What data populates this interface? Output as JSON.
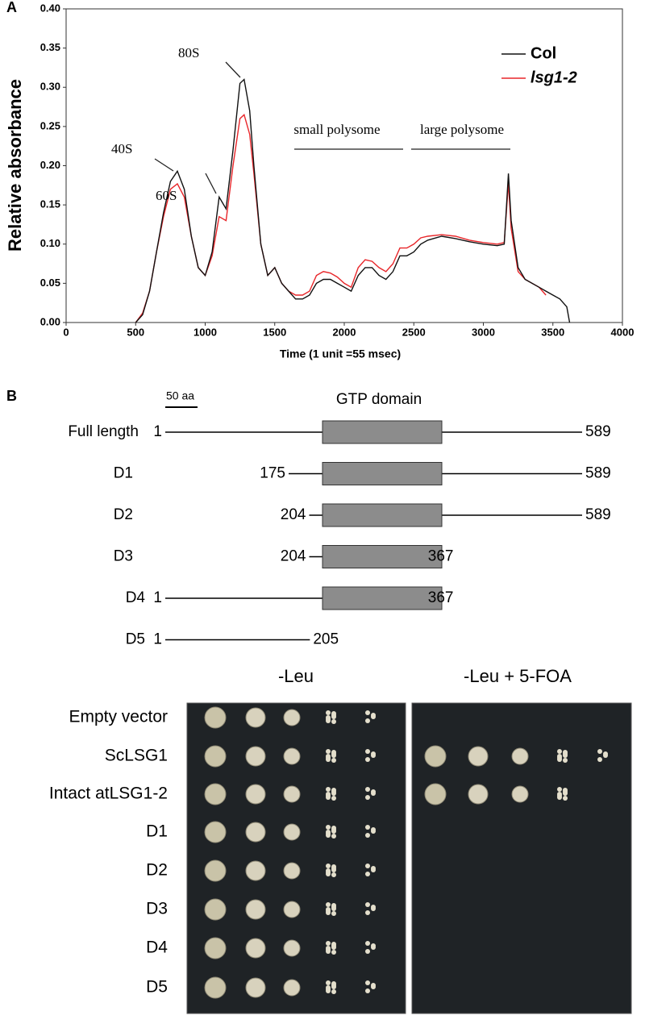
{
  "chart_data": {
    "type": "line",
    "panel": "A",
    "ylabel": "Relative absorbance",
    "xlabel": "Time (1 unit =55 msec)",
    "xlim": [
      0,
      4000
    ],
    "xticks": [
      0,
      500,
      1000,
      1500,
      2000,
      2500,
      3000,
      3500,
      4000
    ],
    "ylim": [
      0,
      0.4
    ],
    "yticks": [
      {
        "value": 0,
        "label": "0.00"
      },
      {
        "value": 0.05,
        "label": "0.05"
      },
      {
        "value": 0.1,
        "label": "0.10"
      },
      {
        "value": 0.15,
        "label": "0.15"
      },
      {
        "value": 0.2,
        "label": "0.20"
      },
      {
        "value": 0.25,
        "label": "0.25"
      },
      {
        "value": 0.3,
        "label": "0.30"
      },
      {
        "value": 0.35,
        "label": "0.35"
      },
      {
        "value": 0.4,
        "label": "0.40"
      }
    ],
    "legend": "upper right",
    "annotations": [
      "40S",
      "60S",
      "80S",
      "small polysome",
      "large polysome"
    ],
    "x": [
      500,
      550,
      600,
      650,
      700,
      750,
      800,
      850,
      900,
      950,
      1000,
      1050,
      1100,
      1150,
      1200,
      1250,
      1280,
      1320,
      1350,
      1400,
      1450,
      1500,
      1550,
      1600,
      1650,
      1700,
      1750,
      1800,
      1850,
      1900,
      1950,
      2000,
      2050,
      2100,
      2150,
      2200,
      2250,
      2300,
      2350,
      2400,
      2450,
      2500,
      2550,
      2600,
      2700,
      2800,
      2900,
      3000,
      3100,
      3150,
      3180,
      3200,
      3250,
      3300,
      3400,
      3450,
      3500,
      3550,
      3600,
      3620
    ],
    "series": [
      {
        "name": "Col",
        "color": "#111111",
        "values": [
          0,
          0.01,
          0.04,
          0.09,
          0.14,
          0.18,
          0.193,
          0.17,
          0.11,
          0.07,
          0.06,
          0.09,
          0.16,
          0.145,
          0.22,
          0.305,
          0.31,
          0.27,
          0.2,
          0.1,
          0.06,
          0.07,
          0.05,
          0.04,
          0.03,
          0.03,
          0.035,
          0.05,
          0.055,
          0.055,
          0.05,
          0.045,
          0.04,
          0.06,
          0.07,
          0.07,
          0.06,
          0.055,
          0.065,
          0.085,
          0.085,
          0.09,
          0.1,
          0.105,
          0.11,
          0.107,
          0.103,
          0.1,
          0.098,
          0.1,
          0.19,
          0.13,
          0.07,
          0.055,
          0.045,
          0.04,
          0.035,
          0.03,
          0.02,
          0
        ]
      },
      {
        "name": "lsg1-2",
        "color": "#e8262a",
        "values": [
          0,
          0.012,
          0.04,
          0.09,
          0.135,
          0.17,
          0.177,
          0.16,
          0.11,
          0.07,
          0.06,
          0.085,
          0.135,
          0.13,
          0.2,
          0.26,
          0.265,
          0.24,
          0.19,
          0.1,
          0.06,
          0.07,
          0.05,
          0.04,
          0.035,
          0.035,
          0.04,
          0.06,
          0.065,
          0.063,
          0.058,
          0.05,
          0.045,
          0.07,
          0.08,
          0.078,
          0.07,
          0.065,
          0.075,
          0.095,
          0.095,
          0.1,
          0.108,
          0.11,
          0.112,
          0.11,
          0.105,
          0.102,
          0.1,
          0.102,
          0.178,
          0.12,
          0.065,
          0.055,
          0.045,
          0.035,
          null,
          null,
          null,
          null
        ]
      }
    ]
  },
  "diagram": {
    "panel": "B",
    "scale_label": "50 aa",
    "domain_label": "GTP  domain",
    "constructs": [
      {
        "label": "Full length",
        "start": 1,
        "end": 589
      },
      {
        "label": "D1",
        "start": 175,
        "end": 589
      },
      {
        "label": "D2",
        "start": 204,
        "end": 589
      },
      {
        "label": "D3",
        "start": 204,
        "end": 367
      },
      {
        "label": "D4",
        "start": 1,
        "end": 367
      },
      {
        "label": "D5",
        "start": 1,
        "end": 205
      }
    ]
  },
  "plates": {
    "titles": [
      "-Leu",
      "-Leu + 5-FOA"
    ],
    "rows": [
      "Empty vector",
      "ScLSG1",
      "Intact atLSG1-2",
      "D1",
      "D2",
      "D3",
      "D4",
      "D5"
    ]
  }
}
